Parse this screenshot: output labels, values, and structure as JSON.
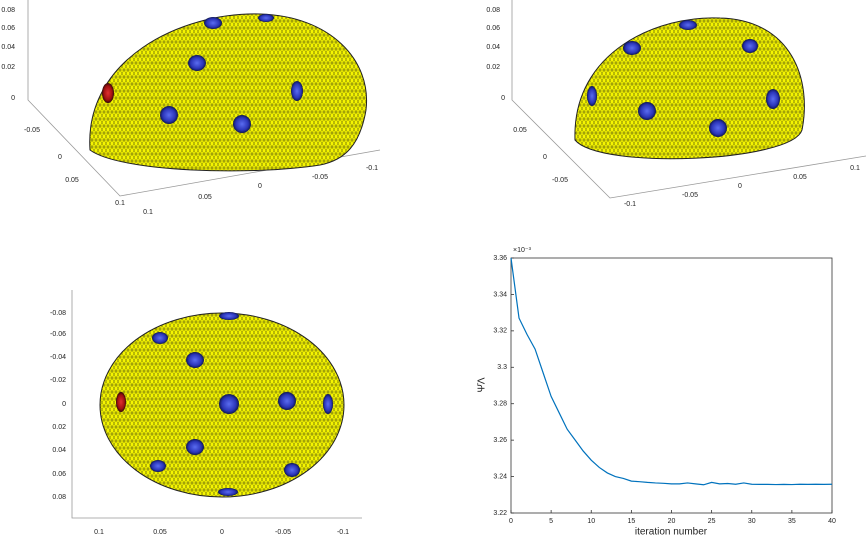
{
  "chart_data": [
    {
      "type": "surface",
      "xticks": [
        0.1,
        0.05,
        0,
        -0.05,
        -0.1
      ],
      "yticks": [
        -0.05,
        0,
        0.05,
        0.1
      ],
      "zticks": [
        0,
        0.02,
        0.04,
        0.06,
        0.08
      ]
    },
    {
      "type": "surface",
      "xticks": [
        -0.1,
        -0.05,
        0,
        0.05,
        0.1
      ],
      "yticks": [
        0.05,
        0,
        -0.05
      ],
      "zticks": [
        0,
        0.02,
        0.04,
        0.06,
        0.08
      ]
    },
    {
      "type": "surface",
      "xticks": [
        0.1,
        0.05,
        0,
        -0.05,
        -0.1
      ],
      "yticks": [
        -0.08,
        -0.06,
        -0.04,
        -0.02,
        0,
        0.02,
        0.04,
        0.06,
        0.08
      ]
    },
    {
      "type": "line",
      "xlabel": "iteration number",
      "ylabel": "Ψ̄Λ",
      "y_multiplier": "×10⁻³",
      "color": "#0072bd",
      "x": [
        0,
        1,
        2,
        3,
        4,
        5,
        6,
        7,
        8,
        9,
        10,
        11,
        12,
        13,
        14,
        15,
        16,
        17,
        18,
        19,
        20,
        21,
        22,
        23,
        24,
        25,
        26,
        27,
        28,
        29,
        30,
        31,
        32,
        33,
        34,
        35,
        36,
        37,
        38,
        39,
        40
      ],
      "values": [
        3.36,
        3.327,
        3.318,
        3.31,
        3.297,
        3.284,
        3.275,
        3.266,
        3.26,
        3.254,
        3.249,
        3.245,
        3.242,
        3.24,
        3.239,
        3.2375,
        3.2372,
        3.2368,
        3.2365,
        3.2363,
        3.236,
        3.236,
        3.2365,
        3.236,
        3.2355,
        3.2368,
        3.236,
        3.2362,
        3.2358,
        3.2365,
        3.2358,
        3.2357,
        3.2357,
        3.2356,
        3.2357,
        3.2356,
        3.2358,
        3.2357,
        3.2358,
        3.2357,
        3.2358
      ],
      "xlim": [
        0,
        40
      ],
      "xticks": [
        0,
        5,
        10,
        15,
        20,
        25,
        30,
        35,
        40
      ],
      "ylim": [
        3.22,
        3.36
      ],
      "yticks": [
        3.22,
        3.24,
        3.26,
        3.28,
        3.3,
        3.32,
        3.34,
        3.36
      ]
    }
  ]
}
